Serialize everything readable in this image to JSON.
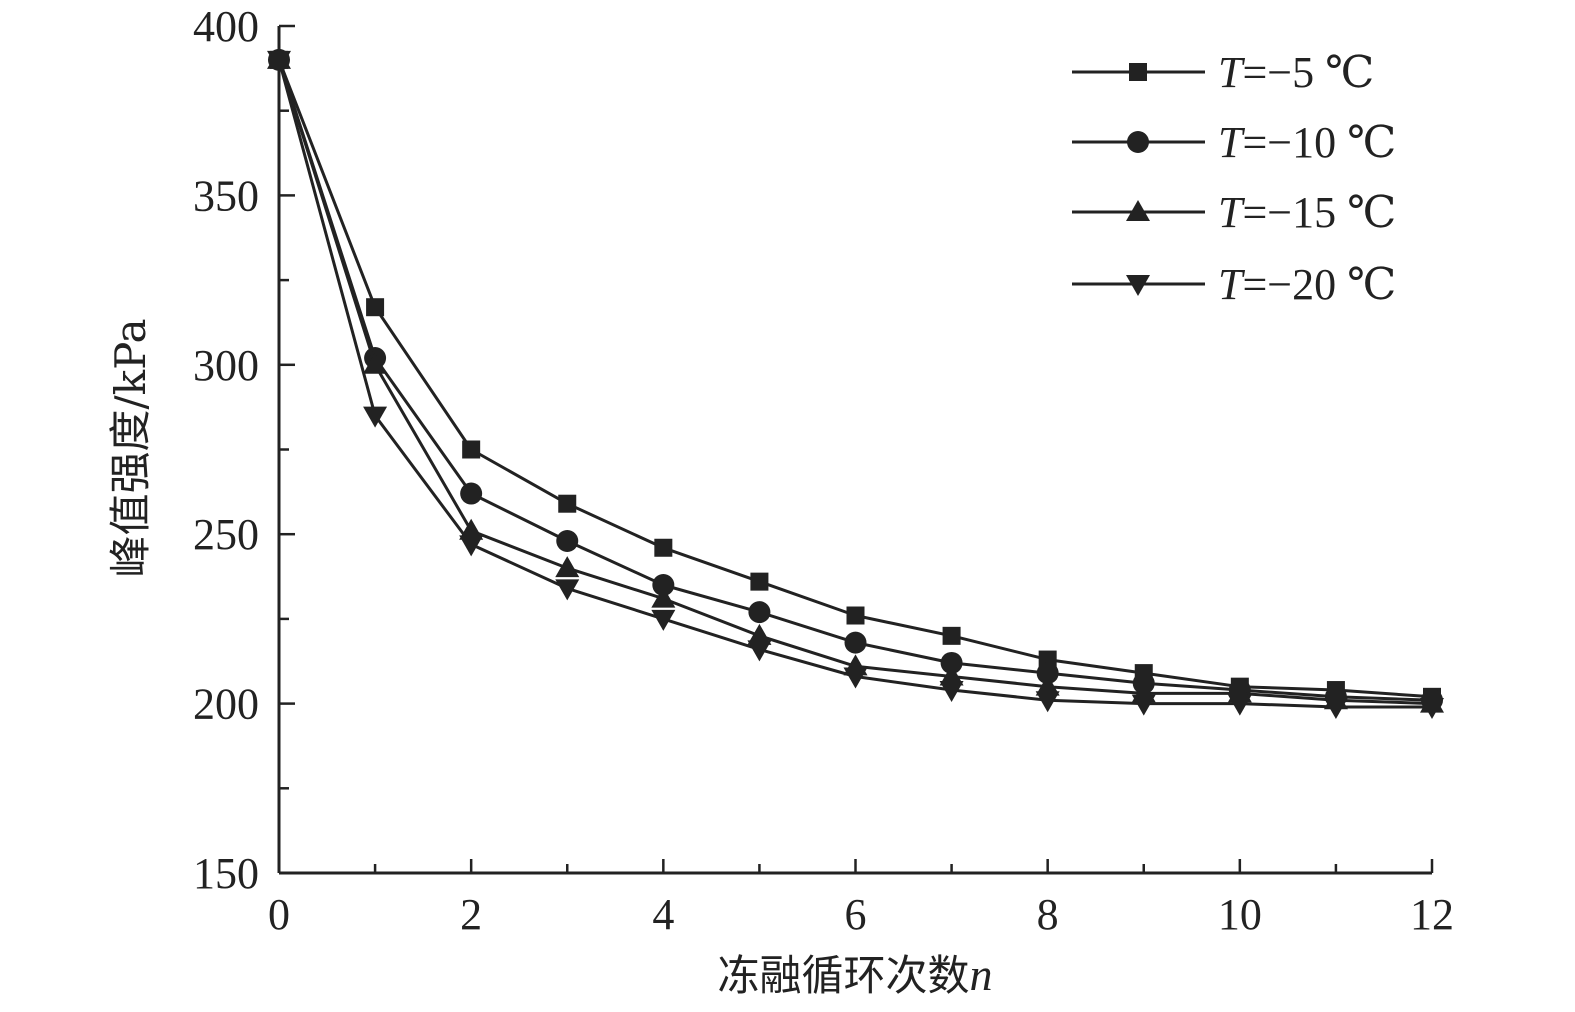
{
  "chart_data": {
    "type": "line",
    "xlabel": "冻融循环次数",
    "xlabel_var": "n",
    "ylabel": "峰值强度/kPa",
    "xlim": [
      0,
      12
    ],
    "ylim": [
      150,
      400
    ],
    "xticks": [
      0,
      2,
      4,
      6,
      8,
      10,
      12
    ],
    "yticks": [
      150,
      200,
      250,
      300,
      350,
      400
    ],
    "x_minor_step": 1,
    "y_minor_step": 25,
    "grid": false,
    "legend_position": "top-right",
    "line_color": "#222222",
    "series": [
      {
        "name": "T=−5 ℃",
        "name_var": "T",
        "name_rest": "=−5 ℃",
        "marker": "square",
        "x": [
          0,
          1,
          2,
          3,
          4,
          5,
          6,
          7,
          8,
          9,
          10,
          11,
          12
        ],
        "values": [
          390,
          317,
          275,
          259,
          246,
          236,
          226,
          220,
          213,
          209,
          205,
          204,
          202
        ]
      },
      {
        "name": "T=−10 ℃",
        "name_var": "T",
        "name_rest": "=−10 ℃",
        "marker": "circle",
        "x": [
          0,
          1,
          2,
          3,
          4,
          5,
          6,
          7,
          8,
          9,
          10,
          11,
          12
        ],
        "values": [
          390,
          302,
          262,
          248,
          235,
          227,
          218,
          212,
          209,
          206,
          204,
          202,
          201
        ]
      },
      {
        "name": "T=−15 ℃",
        "name_var": "T",
        "name_rest": "=−15 ℃",
        "marker": "triangle-up",
        "x": [
          0,
          1,
          2,
          3,
          4,
          5,
          6,
          7,
          8,
          9,
          10,
          11,
          12
        ],
        "values": [
          390,
          300,
          251,
          240,
          231,
          220,
          211,
          208,
          205,
          203,
          203,
          201,
          200
        ]
      },
      {
        "name": "T=−20 ℃",
        "name_var": "T",
        "name_rest": "=−20 ℃",
        "marker": "triangle-down",
        "x": [
          0,
          1,
          2,
          3,
          4,
          5,
          6,
          7,
          8,
          9,
          10,
          11,
          12
        ],
        "values": [
          390,
          285,
          247,
          234,
          225,
          216,
          208,
          204,
          201,
          200,
          200,
          199,
          199
        ]
      }
    ]
  }
}
